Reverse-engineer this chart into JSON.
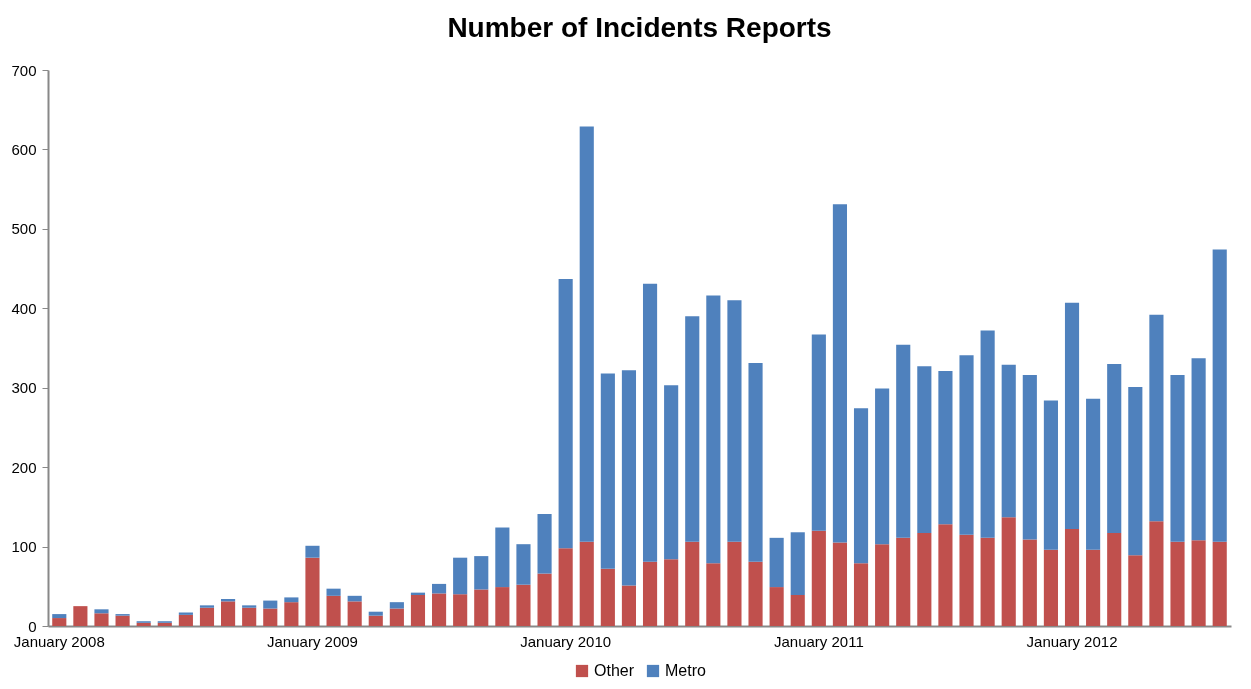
{
  "chart_data": {
    "type": "bar",
    "title": "Number of Incidents Reports",
    "stacked": true,
    "legend": "bottom",
    "grid": false,
    "categories": [
      "January 2008",
      null,
      null,
      null,
      null,
      null,
      null,
      null,
      null,
      null,
      null,
      null,
      "January 2009",
      null,
      null,
      null,
      null,
      null,
      null,
      null,
      null,
      null,
      null,
      null,
      "January 2010",
      null,
      null,
      null,
      null,
      null,
      null,
      null,
      null,
      null,
      null,
      null,
      "January 2011",
      null,
      null,
      null,
      null,
      null,
      null,
      null,
      null,
      null,
      null,
      null,
      "January 2012",
      null,
      null,
      null,
      null,
      null,
      null,
      null
    ],
    "ylim": [
      0,
      700
    ],
    "yticks": [
      0,
      100,
      200,
      300,
      400,
      500,
      600,
      700
    ],
    "series": [
      {
        "name": "Other",
        "color": "#c0504d",
        "values": [
          10,
          25,
          16,
          13,
          4,
          4,
          14,
          23,
          31,
          23,
          22,
          30,
          86,
          38,
          31,
          13,
          22,
          39,
          41,
          40,
          46,
          49,
          52,
          66,
          98,
          106,
          72,
          51,
          81,
          84,
          106,
          79,
          106,
          81,
          49,
          39,
          120,
          105,
          79,
          103,
          111,
          117,
          128,
          115,
          111,
          137,
          109,
          96,
          122,
          96,
          117,
          89,
          132,
          106,
          108,
          106
        ]
      },
      {
        "name": "Metro",
        "color": "#4f81bd",
        "values": [
          5,
          0,
          5,
          2,
          2,
          2,
          3,
          3,
          3,
          3,
          10,
          6,
          15,
          9,
          7,
          5,
          8,
          3,
          12,
          46,
          42,
          75,
          51,
          75,
          339,
          523,
          246,
          271,
          350,
          219,
          284,
          337,
          304,
          250,
          62,
          79,
          247,
          426,
          195,
          196,
          243,
          210,
          193,
          226,
          261,
          192,
          207,
          188,
          285,
          190,
          213,
          212,
          260,
          210,
          229,
          368
        ]
      }
    ]
  }
}
